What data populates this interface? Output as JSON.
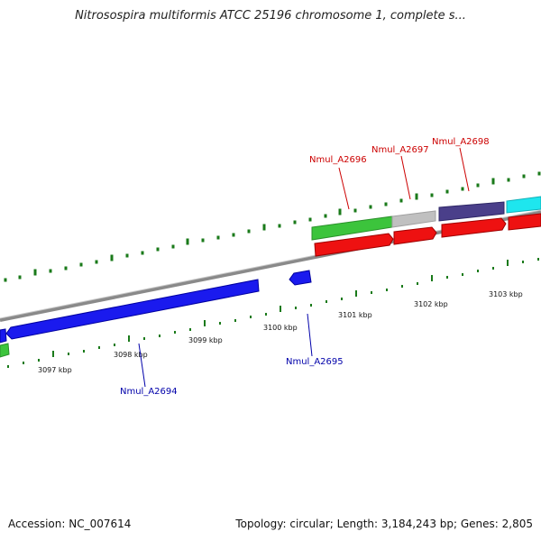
{
  "title": "Nitrosospira multiformis ATCC 25196 chromosome 1, complete s...",
  "footer": {
    "accession": "Accession: NC_007614",
    "summary": "Topology: circular; Length: 3,184,243 bp; Genes: 2,805"
  },
  "colors": {
    "backbone": "#8a8a8a",
    "tick": "#1a7a1a",
    "forward_label": "#cc0000",
    "reverse_label": "#0000aa"
  },
  "kbp_labels": [
    "3097 kbp",
    "3098 kbp",
    "3099 kbp",
    "3100 kbp",
    "3101 kbp",
    "3102 kbp",
    "3103 kbp"
  ],
  "gene_labels": [
    "Nmul_A2696",
    "Nmul_A2697",
    "Nmul_A2698",
    "Nmul_A2695",
    "Nmul_A2694"
  ]
}
